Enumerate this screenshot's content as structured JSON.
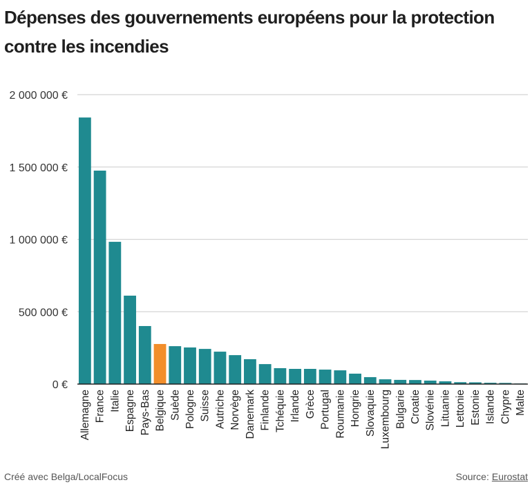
{
  "header": {
    "title": "Dépenses des gouvernements européens pour la protection contre les incendies"
  },
  "footer": {
    "credit": "Créé avec Belga/LocalFocus",
    "source_label": "Source:",
    "source_link": "Eurostat"
  },
  "colors": {
    "bar": "#1f8a90",
    "highlight": "#f28e2b",
    "grid": "#d4d4d4",
    "axis": "#222222"
  },
  "chart_data": {
    "type": "bar",
    "title": "Dépenses des gouvernements européens pour la protection contre les incendies",
    "xlabel": "",
    "ylabel": "",
    "ylim": [
      0,
      2000000
    ],
    "yticks": [
      0,
      500000,
      1000000,
      1500000,
      2000000
    ],
    "ytick_labels": [
      "0 €",
      "500 000 €",
      "1 000 000 €",
      "1 500 000 €",
      "2 000 000 €"
    ],
    "grid": true,
    "highlight": "Belgique",
    "categories": [
      "Allemagne",
      "France",
      "Italie",
      "Espagne",
      "Pays-Bas",
      "Belgique",
      "Suède",
      "Pologne",
      "Suisse",
      "Autriche",
      "Norvège",
      "Danemark",
      "Finlande",
      "Tchéquie",
      "Irlande",
      "Grèce",
      "Portugal",
      "Roumanie",
      "Hongrie",
      "Slovaquie",
      "Luxembourg",
      "Bulgarie",
      "Croatie",
      "Slovénie",
      "Lituanie",
      "Lettonie",
      "Estonie",
      "Islande",
      "Chypre",
      "Malte"
    ],
    "values": [
      1842000,
      1475000,
      983000,
      611000,
      401000,
      277000,
      262000,
      253000,
      243000,
      224000,
      200000,
      172000,
      138000,
      110000,
      105000,
      105000,
      100000,
      95000,
      72000,
      48000,
      33000,
      29000,
      28000,
      24000,
      19000,
      13000,
      12000,
      9000,
      8000,
      4000
    ]
  }
}
